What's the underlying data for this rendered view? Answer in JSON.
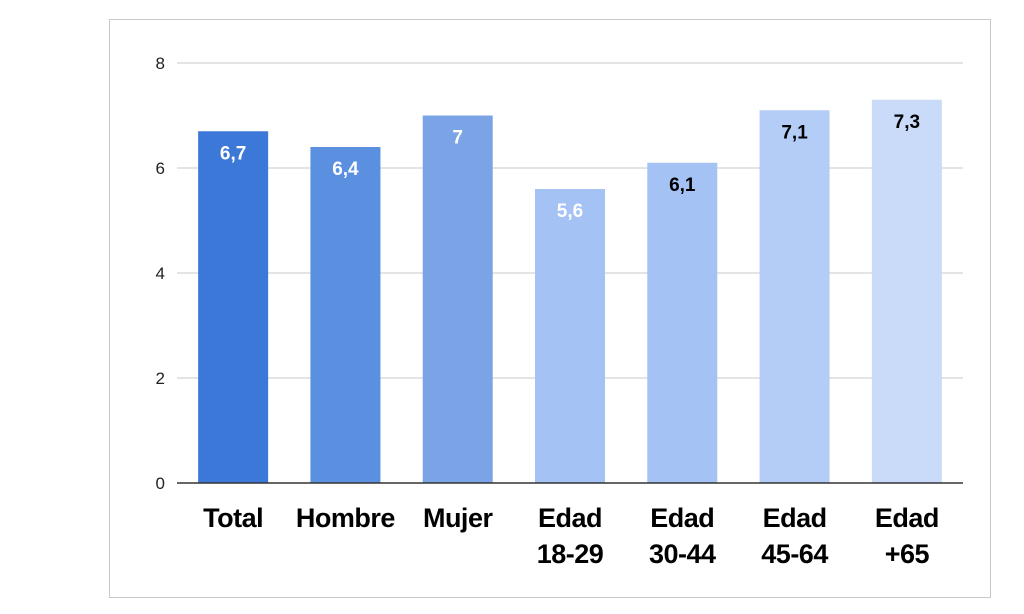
{
  "chart_data": {
    "type": "bar",
    "categories": [
      [
        "Total"
      ],
      [
        "Hombre"
      ],
      [
        "Mujer"
      ],
      [
        "Edad",
        "18-29"
      ],
      [
        "Edad",
        "30-44"
      ],
      [
        "Edad",
        "45-64"
      ],
      [
        "Edad",
        "+65"
      ]
    ],
    "values": [
      6.7,
      6.4,
      7,
      5.6,
      6.1,
      7.1,
      7.3
    ],
    "value_labels": [
      "6,7",
      "6,4",
      "7",
      "5,6",
      "6,1",
      "7,1",
      "7,3"
    ],
    "bar_colors": [
      "#3c78d8",
      "#5b8fdf",
      "#7aa4e5",
      "#a4c2f4",
      "#a4c2f4",
      "#b4cdf6",
      "#c9dbf8"
    ],
    "label_colors": [
      "#ffffff",
      "#ffffff",
      "#ffffff",
      "#ffffff",
      "#000000",
      "#000000",
      "#000000"
    ],
    "ylim": [
      0,
      8
    ],
    "yticks": [
      "0",
      "2",
      "4",
      "6",
      "8"
    ],
    "grid": true,
    "title": "",
    "xlabel": "",
    "ylabel": ""
  }
}
